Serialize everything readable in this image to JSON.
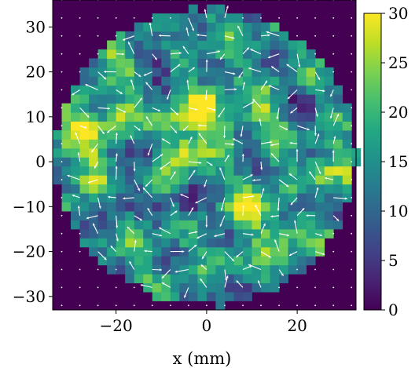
{
  "chart_data": {
    "type": "heatmap",
    "title": "",
    "xlabel": "x (mm)",
    "ylabel": "",
    "xlim": [
      -34,
      33
    ],
    "ylim": [
      -33,
      36
    ],
    "x_ticks": [
      -20,
      0,
      20
    ],
    "x_tick_labels": [
      "−20",
      "0",
      "20"
    ],
    "y_ticks": [
      30,
      20,
      10,
      0,
      -10,
      -20,
      -30
    ],
    "y_tick_labels": [
      "30",
      "20",
      "10",
      "0",
      "−10",
      "−20",
      "−30"
    ],
    "colorbar": {
      "colormap": "viridis",
      "range": [
        0,
        30
      ],
      "ticks": [
        0,
        5,
        10,
        15,
        20,
        25,
        30
      ],
      "tick_labels": [
        "0",
        "5",
        "10",
        "15",
        "20",
        "25",
        "30"
      ]
    },
    "region": {
      "shape": "circle",
      "center": [
        0,
        1
      ],
      "radius": 33
    },
    "cell_size": 2,
    "background_value": 0,
    "hot_spots": [
      {
        "x": -28,
        "y": 7,
        "value": 30
      },
      {
        "x": -20,
        "y": 10,
        "value": 26
      },
      {
        "x": -5,
        "y": 2,
        "value": 29
      },
      {
        "x": -7,
        "y": 9,
        "value": 27
      },
      {
        "x": 0,
        "y": 12,
        "value": 28
      },
      {
        "x": 5,
        "y": 6,
        "value": 25
      },
      {
        "x": 26,
        "y": -2,
        "value": 27
      },
      {
        "x": 10,
        "y": -10,
        "value": 28
      },
      {
        "x": 17,
        "y": -16,
        "value": 26
      },
      {
        "x": 13,
        "y": 10,
        "value": 24
      },
      {
        "x": -20,
        "y": 26,
        "value": 24
      },
      {
        "x": -26,
        "y": -3,
        "value": 26
      },
      {
        "x": 4,
        "y": -23,
        "value": 23
      }
    ],
    "cold_spots": [
      {
        "x": -20,
        "y": -8,
        "value": 4
      },
      {
        "x": -10,
        "y": 22,
        "value": 5
      },
      {
        "x": -4,
        "y": -10,
        "value": 3
      },
      {
        "x": 3,
        "y": -26,
        "value": 4
      },
      {
        "x": 22,
        "y": 13,
        "value": 6
      },
      {
        "x": 8,
        "y": 4,
        "value": 5
      },
      {
        "x": 22,
        "y": -8,
        "value": 6
      },
      {
        "x": -13,
        "y": 4,
        "value": 6
      }
    ],
    "quiver": {
      "color": "#ffffff",
      "grid_spacing": 4,
      "arrow_length_mm": 2.6
    }
  }
}
